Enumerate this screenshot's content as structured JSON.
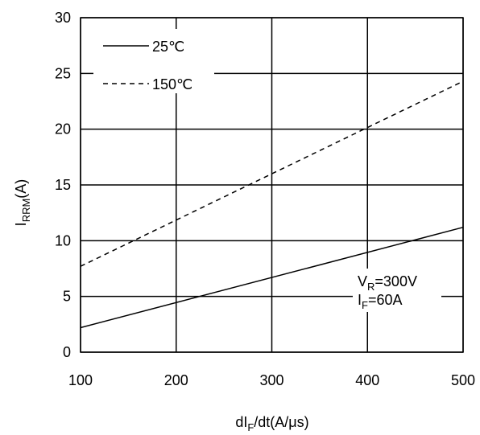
{
  "chart_data": {
    "type": "line",
    "title": "",
    "xlabel": {
      "base": "dI",
      "sub": "F",
      "tail": "/dt(A/μs)"
    },
    "ylabel": {
      "base": "I",
      "sub": "RRM",
      "tail": "(A)"
    },
    "xlim": [
      100,
      500
    ],
    "ylim": [
      0,
      30
    ],
    "xticks": [
      100,
      200,
      300,
      400,
      500
    ],
    "yticks": [
      0,
      5,
      10,
      15,
      20,
      25,
      30
    ],
    "grid": true,
    "legend": "top-left",
    "series": [
      {
        "name": "25℃",
        "style": "solid",
        "color": "#000000",
        "x": [
          100,
          500
        ],
        "y": [
          2.2,
          11.2
        ]
      },
      {
        "name": "150℃",
        "style": "dashed",
        "color": "#000000",
        "x": [
          100,
          500
        ],
        "y": [
          7.7,
          24.3
        ]
      }
    ],
    "annotations": {
      "vr": {
        "base": "V",
        "sub": "R",
        "tail": "=300V"
      },
      "if": {
        "base": "I",
        "sub": "F",
        "tail": "=60A"
      }
    }
  }
}
